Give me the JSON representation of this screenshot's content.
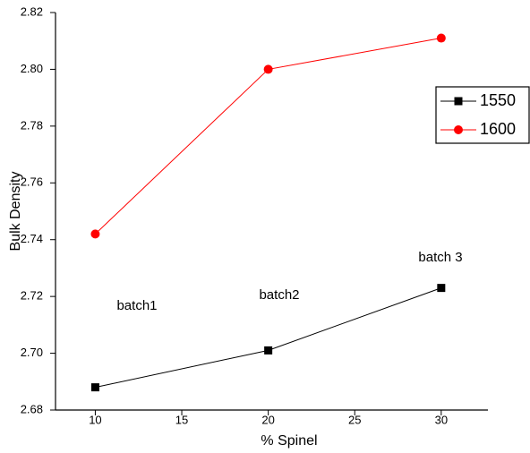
{
  "chart_data": {
    "type": "line",
    "x": [
      10,
      20,
      30
    ],
    "series": [
      {
        "name": "1550",
        "color": "#000000",
        "marker": "square",
        "values": [
          2.688,
          2.701,
          2.723
        ]
      },
      {
        "name": "1600",
        "color": "#ff0000",
        "marker": "circle",
        "values": [
          2.742,
          2.8,
          2.811
        ]
      }
    ],
    "xlabel": "% Spinel",
    "ylabel": "Bulk Density",
    "xlim": [
      7.7,
      32.7
    ],
    "ylim": [
      2.68,
      2.82
    ],
    "xticks": [
      10,
      15,
      20,
      25,
      30
    ],
    "yticks": [
      2.68,
      {
        "value": 2.7,
        "label": "2.70"
      },
      2.72,
      2.74,
      2.76,
      2.78,
      {
        "value": 2.8,
        "label": "2.80"
      },
      2.82
    ],
    "annotations": [
      "batch1",
      "batch2",
      "batch 3"
    ],
    "legend": "upper right"
  }
}
